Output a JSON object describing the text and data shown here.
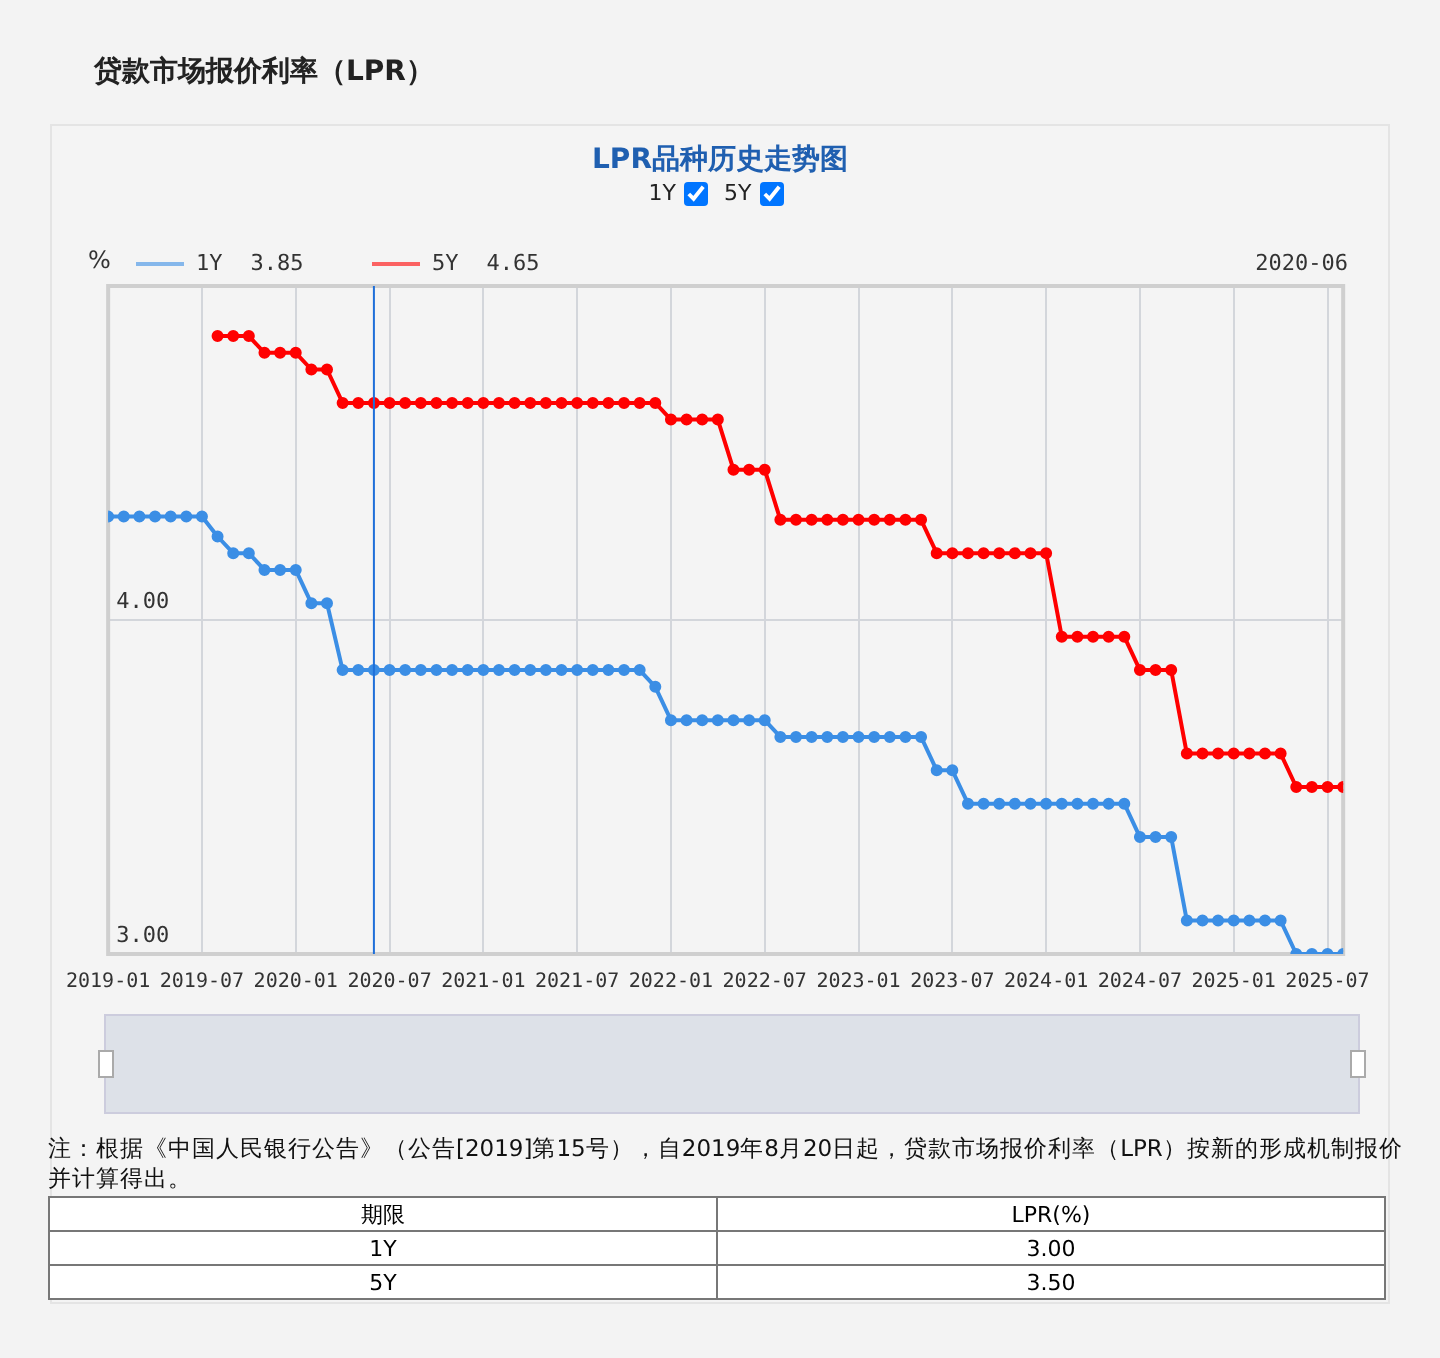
{
  "chart_data": [
    {
      "type": "line",
      "title": "贷款市场报价利率（LPR）",
      "subtitle": "LPR品种历史走势图",
      "ylabel": "%",
      "x": [
        "2019-01",
        "2019-02",
        "2019-03",
        "2019-04",
        "2019-05",
        "2019-06",
        "2019-07",
        "2019-08",
        "2019-09",
        "2019-10",
        "2019-11",
        "2019-12",
        "2020-01",
        "2020-02",
        "2020-03",
        "2020-04",
        "2020-05",
        "2020-06",
        "2020-07",
        "2020-08",
        "2020-09",
        "2020-10",
        "2020-11",
        "2020-12",
        "2021-01",
        "2021-02",
        "2021-03",
        "2021-04",
        "2021-05",
        "2021-06",
        "2021-07",
        "2021-08",
        "2021-09",
        "2021-10",
        "2021-11",
        "2021-12",
        "2022-01",
        "2022-02",
        "2022-03",
        "2022-04",
        "2022-05",
        "2022-06",
        "2022-07",
        "2022-08",
        "2022-09",
        "2022-10",
        "2022-11",
        "2022-12",
        "2023-01",
        "2023-02",
        "2023-03",
        "2023-04",
        "2023-05",
        "2023-06",
        "2023-07",
        "2023-08",
        "2023-09",
        "2023-10",
        "2023-11",
        "2023-12",
        "2024-01",
        "2024-02",
        "2024-03",
        "2024-04",
        "2024-05",
        "2024-06",
        "2024-07",
        "2024-08",
        "2024-09",
        "2024-10",
        "2024-11",
        "2024-12",
        "2025-01",
        "2025-02",
        "2025-03",
        "2025-04",
        "2025-05",
        "2025-06",
        "2025-07",
        "2025-08"
      ],
      "series": [
        {
          "name": "1Y",
          "color": "#3b8ee5",
          "values": [
            4.31,
            4.31,
            4.31,
            4.31,
            4.31,
            4.31,
            4.31,
            4.25,
            4.2,
            4.2,
            4.15,
            4.15,
            4.15,
            4.05,
            4.05,
            3.85,
            3.85,
            3.85,
            3.85,
            3.85,
            3.85,
            3.85,
            3.85,
            3.85,
            3.85,
            3.85,
            3.85,
            3.85,
            3.85,
            3.85,
            3.85,
            3.85,
            3.85,
            3.85,
            3.85,
            3.8,
            3.7,
            3.7,
            3.7,
            3.7,
            3.7,
            3.7,
            3.7,
            3.65,
            3.65,
            3.65,
            3.65,
            3.65,
            3.65,
            3.65,
            3.65,
            3.65,
            3.65,
            3.55,
            3.55,
            3.45,
            3.45,
            3.45,
            3.45,
            3.45,
            3.45,
            3.45,
            3.45,
            3.45,
            3.45,
            3.45,
            3.35,
            3.35,
            3.35,
            3.1,
            3.1,
            3.1,
            3.1,
            3.1,
            3.1,
            3.1,
            3,
            3,
            3,
            3
          ]
        },
        {
          "name": "5Y",
          "color": "#ff0000",
          "values": [
            null,
            null,
            null,
            null,
            null,
            null,
            null,
            4.85,
            4.85,
            4.85,
            4.8,
            4.8,
            4.8,
            4.75,
            4.75,
            4.65,
            4.65,
            4.65,
            4.65,
            4.65,
            4.65,
            4.65,
            4.65,
            4.65,
            4.65,
            4.65,
            4.65,
            4.65,
            4.65,
            4.65,
            4.65,
            4.65,
            4.65,
            4.65,
            4.65,
            4.65,
            4.6,
            4.6,
            4.6,
            4.6,
            4.45,
            4.45,
            4.45,
            4.3,
            4.3,
            4.3,
            4.3,
            4.3,
            4.3,
            4.3,
            4.3,
            4.3,
            4.3,
            4.2,
            4.2,
            4.2,
            4.2,
            4.2,
            4.2,
            4.2,
            4.2,
            3.95,
            3.95,
            3.95,
            3.95,
            3.95,
            3.85,
            3.85,
            3.85,
            3.6,
            3.6,
            3.6,
            3.6,
            3.6,
            3.6,
            3.6,
            3.5,
            3.5,
            3.5,
            3.5
          ]
        }
      ],
      "xlim": [
        "2019-01",
        "2025-08"
      ],
      "xticks": [
        "2019-01",
        "2019-07",
        "2020-01",
        "2020-07",
        "2021-01",
        "2021-07",
        "2022-01",
        "2022-07",
        "2023-01",
        "2023-07",
        "2024-01",
        "2024-07",
        "2025-01",
        "2025-07"
      ],
      "ylim": [
        3,
        5
      ],
      "yticks": [
        {
          "value": 3,
          "label": "3.00"
        },
        {
          "value": 4,
          "label": "4.00"
        }
      ],
      "grid": true,
      "legend": "top left",
      "marker": "circle",
      "line_style": "solid",
      "ref_lines": [
        {
          "axis": "x",
          "value": "2020-06",
          "color": "#1e6fd9"
        }
      ],
      "annotations": [
        "3.85",
        "4.65",
        "2020-06",
        "注：根据《中国人民银行公告》（公告[2019]第15号），自2019年8月20日起，贷款市场报价利率（LPR）按新的形成机制报价并计算得出。"
      ]
    },
    {
      "type": "other",
      "xlabel": "期限",
      "ylabel": "LPR(%)",
      "categories": [
        "1Y",
        "5Y"
      ],
      "values": [
        3.0,
        3.5
      ],
      "value_labels": [
        "3.00",
        "3.50"
      ]
    }
  ]
}
